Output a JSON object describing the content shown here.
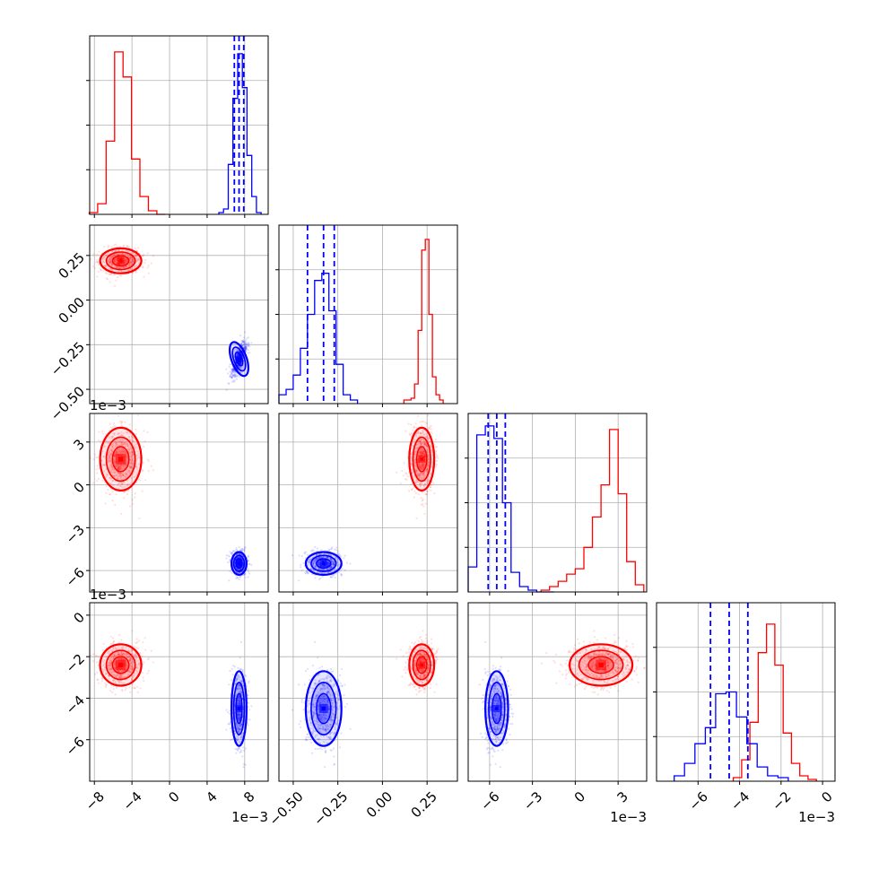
{
  "chart_data": {
    "type": "corner",
    "colors": {
      "red": "#ff0000",
      "blue": "#0000ff"
    },
    "grid": true,
    "parameters": [
      {
        "range": [
          -0.0085,
          0.0105
        ],
        "ticks": [
          -0.008,
          -0.004,
          0,
          0.004,
          0.008
        ],
        "ticklabels": [
          "−8",
          "−4",
          "0",
          "4",
          "8"
        ],
        "offset": "1e−3"
      },
      {
        "range": [
          -0.58,
          0.42
        ],
        "ticks": [
          -0.5,
          -0.25,
          0.0,
          0.25
        ],
        "ticklabels": [
          "−0.50",
          "−0.25",
          "0.00",
          "0.25"
        ],
        "offset": ""
      },
      {
        "range": [
          -0.0075,
          0.005
        ],
        "ticks": [
          -0.006,
          -0.003,
          0,
          0.003
        ],
        "ticklabels": [
          "−6",
          "−3",
          "0",
          "3"
        ],
        "offset": "1e−3"
      },
      {
        "range": [
          -0.008,
          0.0006
        ],
        "ticks": [
          -0.006,
          -0.004,
          -0.002,
          0
        ],
        "ticklabels": [
          "−6",
          "−4",
          "−2",
          "0"
        ],
        "offset": "1e−3"
      }
    ],
    "series": [
      {
        "name": "",
        "color": "red",
        "mean": [
          -0.0052,
          0.22,
          0.0018,
          -0.0024
        ],
        "sd": [
          0.0011,
          0.035,
          0.0011,
          0.0005
        ],
        "marginals": [
          {
            "centers": [
              -0.0081,
              -0.0072,
              -0.0063,
              -0.0054,
              -0.0045,
              -0.0036,
              -0.0027,
              -0.0018,
              -0.0009
            ],
            "values": [
              0.01,
              0.06,
              0.41,
              0.91,
              0.77,
              0.31,
              0.1,
              0.02,
              0.0
            ]
          },
          {
            "centers": [
              0.13,
              0.15,
              0.17,
              0.19,
              0.21,
              0.23,
              0.25,
              0.27,
              0.29,
              0.31,
              0.33
            ],
            "values": [
              0.02,
              0.02,
              0.03,
              0.11,
              0.41,
              0.86,
              0.92,
              0.5,
              0.15,
              0.05,
              0.02
            ]
          },
          {
            "centers": [
              -0.0021,
              -0.0015,
              -0.0009,
              -0.0003,
              0.0003,
              0.0009,
              0.0015,
              0.0021,
              0.0027,
              0.0033,
              0.0039,
              0.0045
            ],
            "values": [
              0.01,
              0.03,
              0.06,
              0.1,
              0.13,
              0.25,
              0.42,
              0.6,
              0.91,
              0.55,
              0.17,
              0.04
            ]
          },
          {
            "centers": [
              -0.0041,
              -0.0037,
              -0.0033,
              -0.0029,
              -0.0025,
              -0.0021,
              -0.0017,
              -0.0013,
              -0.0009,
              -0.0005
            ],
            "values": [
              0.02,
              0.12,
              0.33,
              0.72,
              0.88,
              0.65,
              0.27,
              0.1,
              0.03,
              0.01
            ]
          }
        ]
      },
      {
        "name": "",
        "color": "blue",
        "mean": [
          0.0074,
          -0.33,
          -0.0055,
          -0.0045
        ],
        "sd": [
          0.0004,
          0.05,
          0.0004,
          0.0009
        ],
        "marginals": [
          {
            "centers": [
              0.0055,
              0.006,
              0.0065,
              0.007,
              0.0075,
              0.008,
              0.0085,
              0.009,
              0.0095
            ],
            "values": [
              0.01,
              0.03,
              0.28,
              0.65,
              0.9,
              0.71,
              0.33,
              0.1,
              0.01
            ]
          },
          {
            "centers": [
              -0.56,
              -0.52,
              -0.48,
              -0.44,
              -0.4,
              -0.36,
              -0.32,
              -0.28,
              -0.24,
              -0.2,
              -0.16
            ],
            "values": [
              0.05,
              0.08,
              0.16,
              0.31,
              0.5,
              0.69,
              0.73,
              0.52,
              0.22,
              0.05,
              0.02
            ]
          },
          {
            "centers": [
              -0.0072,
              -0.0066,
              -0.006,
              -0.0054,
              -0.0048,
              -0.0042,
              -0.0036,
              -0.003,
              -0.0024,
              -0.0018
            ],
            "values": [
              0.14,
              0.88,
              0.93,
              0.86,
              0.5,
              0.11,
              0.03,
              0.01,
              0.0,
              0.0
            ]
          },
          {
            "centers": [
              -0.0069,
              -0.0064,
              -0.0059,
              -0.0054,
              -0.0049,
              -0.0044,
              -0.0039,
              -0.0034,
              -0.0029,
              -0.0024,
              -0.0019
            ],
            "values": [
              0.03,
              0.1,
              0.21,
              0.3,
              0.49,
              0.5,
              0.36,
              0.21,
              0.08,
              0.03,
              0.02
            ]
          }
        ],
        "quantiles": [
          [
            0.0069,
            0.0074,
            0.0079
          ],
          [
            -0.42,
            -0.33,
            -0.27
          ],
          [
            -0.0061,
            -0.0055,
            -0.0049
          ],
          [
            -0.0054,
            -0.0045,
            -0.0036
          ]
        ]
      }
    ]
  }
}
